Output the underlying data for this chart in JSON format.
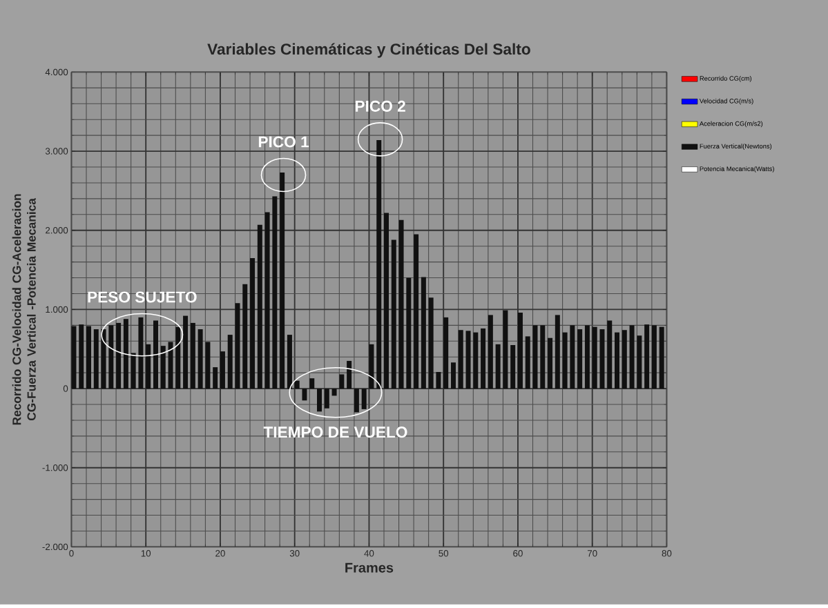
{
  "chart_data": {
    "type": "bar",
    "title": "Variables Cinemáticas y Cinéticas Del Salto",
    "xlabel": "Frames",
    "ylabel": "Recorrido CG-Velocidad CG-Aceleracion CG-Fuerza Vertical -Potencia Mecanica",
    "x": [
      0,
      1,
      2,
      3,
      4,
      5,
      6,
      7,
      8,
      9,
      10,
      11,
      12,
      13,
      14,
      15,
      16,
      17,
      18,
      19,
      20,
      21,
      22,
      23,
      24,
      25,
      26,
      27,
      28,
      29,
      30,
      31,
      32,
      33,
      34,
      35,
      36,
      37,
      38,
      39,
      40,
      41,
      42,
      43,
      44,
      45,
      46,
      47,
      48,
      49,
      50,
      51,
      52,
      53,
      54,
      55,
      56,
      57,
      58,
      59,
      60,
      61,
      62,
      63,
      64,
      65,
      66,
      67,
      68,
      69,
      70,
      71,
      72,
      73,
      74,
      75,
      76,
      77,
      78,
      79
    ],
    "series": [
      {
        "name": "Recorrido CG(cm)",
        "color": "#ff0000",
        "values": [
          null,
          null,
          null,
          null,
          null,
          null,
          null,
          null,
          null,
          null,
          null,
          null,
          null,
          null,
          null,
          null,
          null,
          null,
          null,
          null,
          null,
          null,
          null,
          null,
          null,
          null,
          null,
          null,
          null,
          null,
          null,
          null,
          null,
          null,
          null,
          null,
          null,
          null,
          null,
          null,
          null,
          null,
          null,
          null,
          null,
          null,
          null,
          null,
          null,
          null,
          null,
          null,
          null,
          null,
          null,
          null,
          null,
          null,
          null,
          null,
          null,
          null,
          null,
          null,
          null,
          null,
          null,
          null,
          null,
          null,
          null,
          null,
          null,
          null,
          null,
          null,
          null,
          null,
          null,
          null
        ]
      },
      {
        "name": "Velocidad CG(m/s)",
        "color": "#0000ff",
        "values": [
          null,
          null,
          null,
          null,
          null,
          null,
          null,
          null,
          null,
          null,
          null,
          null,
          null,
          null,
          null,
          null,
          null,
          null,
          null,
          null,
          null,
          null,
          null,
          null,
          null,
          null,
          null,
          null,
          null,
          null,
          null,
          null,
          null,
          null,
          null,
          null,
          null,
          null,
          null,
          null,
          null,
          null,
          null,
          null,
          null,
          null,
          null,
          null,
          null,
          null,
          null,
          null,
          null,
          null,
          null,
          null,
          null,
          null,
          null,
          null,
          null,
          null,
          null,
          null,
          null,
          null,
          null,
          null,
          null,
          null,
          null,
          null,
          null,
          null,
          null,
          null,
          null,
          null,
          null,
          null
        ]
      },
      {
        "name": "Aceleracion CG(m/s2)",
        "color": "#ffff00",
        "values": [
          null,
          null,
          null,
          null,
          null,
          null,
          null,
          null,
          null,
          null,
          null,
          null,
          null,
          null,
          null,
          null,
          null,
          null,
          null,
          null,
          null,
          null,
          null,
          null,
          null,
          null,
          null,
          null,
          null,
          null,
          null,
          null,
          null,
          null,
          null,
          null,
          null,
          null,
          null,
          null,
          null,
          null,
          null,
          null,
          null,
          null,
          null,
          null,
          null,
          null,
          null,
          null,
          null,
          null,
          null,
          null,
          null,
          null,
          null,
          null,
          null,
          null,
          null,
          null,
          null,
          null,
          null,
          null,
          null,
          null,
          null,
          null,
          null,
          null,
          null,
          null,
          null,
          null,
          null,
          null
        ]
      },
      {
        "name": "Fuerza Vertical(Newtons)",
        "color": "#111111",
        "values": [
          790,
          810,
          790,
          750,
          750,
          800,
          830,
          880,
          450,
          900,
          560,
          860,
          540,
          590,
          780,
          920,
          830,
          750,
          590,
          270,
          470,
          680,
          1080,
          1320,
          1650,
          2070,
          2230,
          2430,
          2730,
          680,
          100,
          -150,
          130,
          -290,
          -250,
          -90,
          180,
          350,
          -300,
          -260,
          560,
          3140,
          2220,
          1880,
          2130,
          1400,
          1950,
          1410,
          1150,
          210,
          900,
          330,
          740,
          730,
          710,
          760,
          930,
          560,
          990,
          550,
          960,
          660,
          800,
          800,
          640,
          930,
          710,
          800,
          750,
          800,
          780,
          750,
          860,
          710,
          740,
          800,
          670,
          810,
          800,
          780
        ]
      },
      {
        "name": "Potencia Mecanica(Watts)",
        "color": "#ffffff",
        "values": [
          null,
          null,
          null,
          null,
          null,
          null,
          null,
          null,
          null,
          null,
          null,
          null,
          null,
          null,
          null,
          null,
          null,
          null,
          null,
          null,
          null,
          null,
          null,
          null,
          null,
          null,
          null,
          null,
          null,
          null,
          null,
          null,
          null,
          null,
          null,
          null,
          null,
          null,
          null,
          null,
          null,
          null,
          null,
          null,
          null,
          null,
          null,
          null,
          null,
          null,
          null,
          null,
          null,
          null,
          null,
          null,
          null,
          null,
          null,
          null,
          null,
          null,
          null,
          null,
          null,
          null,
          null,
          null,
          null,
          null,
          null,
          null,
          null,
          null,
          null,
          null,
          null,
          null,
          null,
          null
        ]
      }
    ],
    "xlim": [
      0,
      80
    ],
    "xticks": [
      0,
      10,
      20,
      30,
      40,
      50,
      60,
      70,
      80
    ],
    "ylim": [
      -2000,
      4000
    ],
    "yticks": [
      {
        "value": -2000,
        "label": "-2.000"
      },
      {
        "value": -1000,
        "label": "-1.000"
      },
      0,
      {
        "value": 1000,
        "label": "1.000"
      },
      {
        "value": 2000,
        "label": "2.000"
      },
      {
        "value": 3000,
        "label": "3.000"
      },
      {
        "value": 4000,
        "label": "4.000"
      }
    ],
    "grid": true,
    "legend": "right",
    "annotations": [
      {
        "text": "PESO SUJETO",
        "x": 9.5,
        "y": 680
      },
      {
        "text": "PICO 1",
        "x": 28.5,
        "y": 2700
      },
      {
        "text": "TIEMPO DE VUELO",
        "x": 35.5,
        "y": -50
      },
      {
        "text": "PICO 2",
        "x": 41.5,
        "y": 3150
      }
    ]
  }
}
